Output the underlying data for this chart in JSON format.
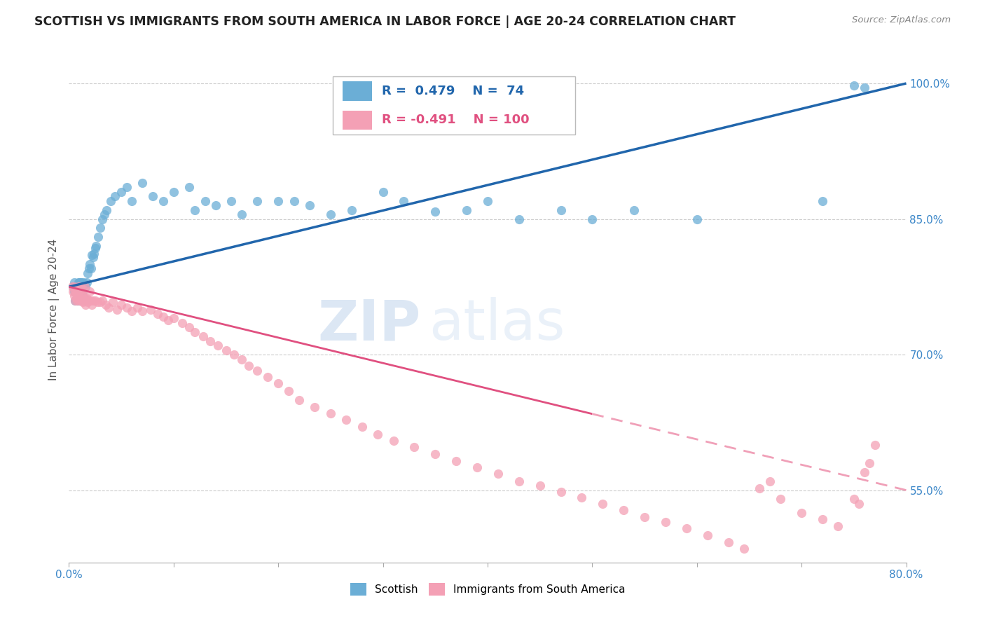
{
  "title": "SCOTTISH VS IMMIGRANTS FROM SOUTH AMERICA IN LABOR FORCE | AGE 20-24 CORRELATION CHART",
  "source": "Source: ZipAtlas.com",
  "ylabel": "In Labor Force | Age 20-24",
  "xmin": 0.0,
  "xmax": 0.8,
  "ymin": 0.47,
  "ymax": 1.03,
  "yticks": [
    0.55,
    0.7,
    0.85,
    1.0
  ],
  "ytick_labels": [
    "55.0%",
    "70.0%",
    "85.0%",
    "100.0%"
  ],
  "xticks": [
    0.0,
    0.1,
    0.2,
    0.3,
    0.4,
    0.5,
    0.6,
    0.7,
    0.8
  ],
  "blue_R": 0.479,
  "blue_N": 74,
  "pink_R": -0.491,
  "pink_N": 100,
  "blue_color": "#6baed6",
  "pink_color": "#f4a0b5",
  "blue_line_color": "#2166ac",
  "pink_line_color": "#e05080",
  "pink_dash_color": "#f0a0b8",
  "legend_label_blue": "Scottish",
  "legend_label_pink": "Immigrants from South America",
  "watermark_zip": "ZIP",
  "watermark_atlas": "atlas",
  "blue_scatter_x": [
    0.004,
    0.005,
    0.005,
    0.006,
    0.006,
    0.007,
    0.007,
    0.008,
    0.008,
    0.009,
    0.009,
    0.01,
    0.01,
    0.011,
    0.011,
    0.012,
    0.012,
    0.013,
    0.013,
    0.014,
    0.014,
    0.015,
    0.015,
    0.016,
    0.016,
    0.017,
    0.018,
    0.019,
    0.02,
    0.021,
    0.022,
    0.023,
    0.024,
    0.025,
    0.026,
    0.028,
    0.03,
    0.032,
    0.034,
    0.036,
    0.04,
    0.044,
    0.05,
    0.055,
    0.06,
    0.07,
    0.08,
    0.09,
    0.1,
    0.115,
    0.12,
    0.13,
    0.14,
    0.155,
    0.165,
    0.18,
    0.2,
    0.215,
    0.23,
    0.25,
    0.27,
    0.3,
    0.32,
    0.35,
    0.38,
    0.4,
    0.43,
    0.47,
    0.5,
    0.54,
    0.6,
    0.72,
    0.75,
    0.76
  ],
  "blue_scatter_y": [
    0.775,
    0.77,
    0.78,
    0.76,
    0.77,
    0.768,
    0.775,
    0.76,
    0.775,
    0.76,
    0.78,
    0.76,
    0.78,
    0.77,
    0.78,
    0.76,
    0.78,
    0.77,
    0.775,
    0.76,
    0.78,
    0.762,
    0.778,
    0.76,
    0.775,
    0.78,
    0.79,
    0.795,
    0.8,
    0.795,
    0.81,
    0.808,
    0.812,
    0.818,
    0.82,
    0.83,
    0.84,
    0.85,
    0.855,
    0.86,
    0.87,
    0.875,
    0.88,
    0.885,
    0.87,
    0.89,
    0.875,
    0.87,
    0.88,
    0.885,
    0.86,
    0.87,
    0.865,
    0.87,
    0.855,
    0.87,
    0.87,
    0.87,
    0.865,
    0.855,
    0.86,
    0.88,
    0.87,
    0.858,
    0.86,
    0.87,
    0.85,
    0.86,
    0.85,
    0.86,
    0.85,
    0.87,
    0.998,
    0.995
  ],
  "pink_scatter_x": [
    0.003,
    0.004,
    0.005,
    0.005,
    0.006,
    0.006,
    0.007,
    0.007,
    0.008,
    0.008,
    0.009,
    0.009,
    0.01,
    0.01,
    0.011,
    0.011,
    0.012,
    0.012,
    0.013,
    0.013,
    0.014,
    0.014,
    0.015,
    0.015,
    0.016,
    0.016,
    0.017,
    0.018,
    0.019,
    0.02,
    0.021,
    0.022,
    0.023,
    0.025,
    0.027,
    0.03,
    0.032,
    0.035,
    0.038,
    0.042,
    0.046,
    0.05,
    0.055,
    0.06,
    0.065,
    0.07,
    0.078,
    0.085,
    0.09,
    0.095,
    0.1,
    0.108,
    0.115,
    0.12,
    0.128,
    0.135,
    0.142,
    0.15,
    0.158,
    0.165,
    0.172,
    0.18,
    0.19,
    0.2,
    0.21,
    0.22,
    0.235,
    0.25,
    0.265,
    0.28,
    0.295,
    0.31,
    0.33,
    0.35,
    0.37,
    0.39,
    0.41,
    0.43,
    0.45,
    0.47,
    0.49,
    0.51,
    0.53,
    0.55,
    0.57,
    0.59,
    0.61,
    0.63,
    0.645,
    0.66,
    0.67,
    0.68,
    0.7,
    0.72,
    0.735,
    0.75,
    0.755,
    0.76,
    0.765,
    0.77
  ],
  "pink_scatter_y": [
    0.775,
    0.77,
    0.775,
    0.765,
    0.77,
    0.76,
    0.768,
    0.762,
    0.77,
    0.76,
    0.775,
    0.762,
    0.77,
    0.76,
    0.775,
    0.762,
    0.768,
    0.76,
    0.765,
    0.758,
    0.772,
    0.76,
    0.775,
    0.762,
    0.76,
    0.755,
    0.762,
    0.758,
    0.76,
    0.77,
    0.76,
    0.755,
    0.76,
    0.76,
    0.758,
    0.758,
    0.76,
    0.755,
    0.752,
    0.758,
    0.75,
    0.755,
    0.752,
    0.748,
    0.752,
    0.748,
    0.75,
    0.745,
    0.742,
    0.738,
    0.74,
    0.735,
    0.73,
    0.725,
    0.72,
    0.715,
    0.71,
    0.705,
    0.7,
    0.695,
    0.688,
    0.682,
    0.675,
    0.668,
    0.66,
    0.65,
    0.642,
    0.635,
    0.628,
    0.62,
    0.612,
    0.605,
    0.598,
    0.59,
    0.582,
    0.575,
    0.568,
    0.56,
    0.555,
    0.548,
    0.542,
    0.535,
    0.528,
    0.52,
    0.515,
    0.508,
    0.5,
    0.492,
    0.485,
    0.552,
    0.56,
    0.54,
    0.525,
    0.518,
    0.51,
    0.54,
    0.535,
    0.57,
    0.58,
    0.6
  ]
}
